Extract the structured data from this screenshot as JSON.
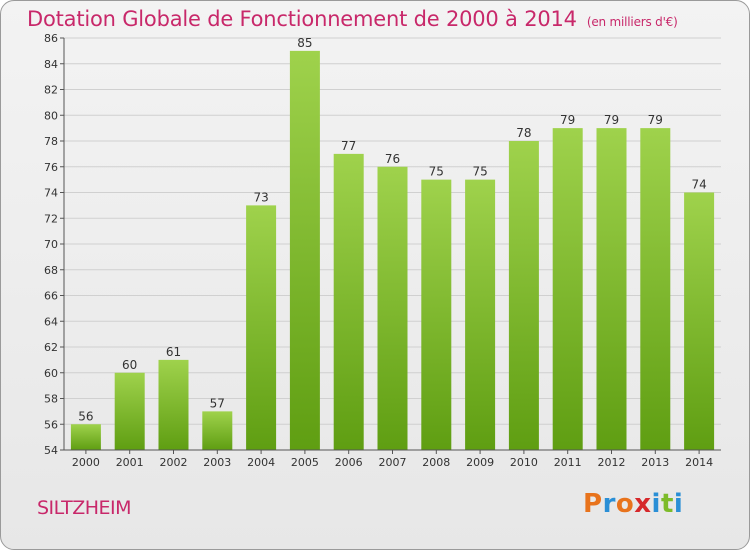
{
  "header": {
    "title": "Dotation Globale de Fonctionnement de 2000 à 2014",
    "subtitle": "(en milliers d'€)"
  },
  "footer": {
    "commune": "SILTZHEIM",
    "logo": "Proxiti",
    "logo_colors": [
      "#e8731c",
      "#2a8fd6",
      "#e8731c",
      "#d6282b",
      "#2a8fd6",
      "#7dbb2a",
      "#2a8fd6"
    ]
  },
  "colors": {
    "bar_top": "#9fd24c",
    "bar_bottom": "#5f9e12",
    "grid": "#d0d0d0",
    "title": "#c8286a"
  },
  "chart_data": {
    "type": "bar",
    "categories": [
      "2000",
      "2001",
      "2002",
      "2003",
      "2004",
      "2005",
      "2006",
      "2007",
      "2008",
      "2009",
      "2010",
      "2011",
      "2012",
      "2013",
      "2014"
    ],
    "values": [
      56,
      60,
      61,
      57,
      73,
      85,
      77,
      76,
      75,
      75,
      78,
      79,
      79,
      79,
      74
    ],
    "ylim": [
      54,
      86
    ],
    "yticks": [
      54,
      56,
      58,
      60,
      62,
      64,
      66,
      68,
      70,
      72,
      74,
      76,
      78,
      80,
      82,
      84,
      86
    ],
    "grid": true,
    "data_labels": true
  }
}
